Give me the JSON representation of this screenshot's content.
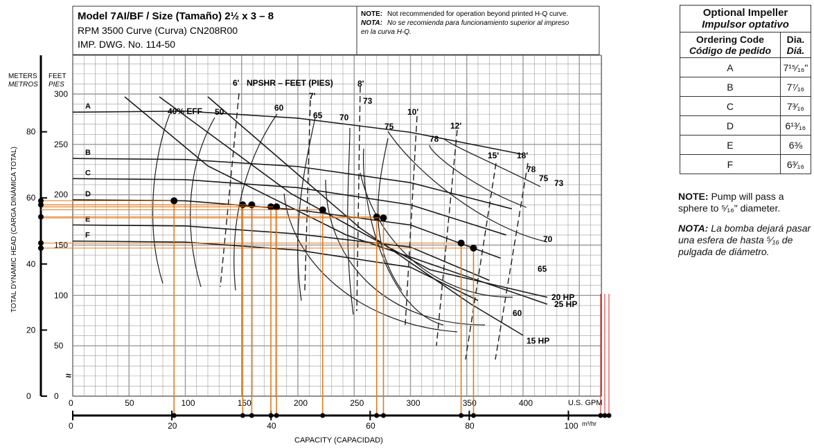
{
  "header": {
    "model_line": "Model 7AI/BF / Size (Tamaño) 2½ x 3 – 8",
    "rpm_line": "RPM 3500 Curve (Curva) CN208R00",
    "dwg_line": "IMP. DWG. No. 114-50",
    "note_en_label": "NOTE:",
    "note_en": "Not recommended for operation beyond printed H-Q curve.",
    "note_es_label": "NOTA:",
    "note_es_1": "No se recomienda para funcionamiento superior al impreso",
    "note_es_2": "en la curva H-Q."
  },
  "axes": {
    "y_left_title": "TOTAL DYNAMIC HEAD (CARGA DINÁMICA TOTAL)",
    "meters_label": "METERS",
    "metros_label": "METROS",
    "feet_label": "FEET",
    "pies_label": "PIES",
    "x_label": "CAPACITY (CAPACIDAD)",
    "gpm_unit": "U.S. GPM",
    "m3hr_unit": "m³/hr"
  },
  "table": {
    "title": "Optional Impeller",
    "title_es": "Impulsor optativo",
    "col1": "Ordering Code",
    "col1_es": "Código de pedido",
    "col2": "Dia.",
    "col2_es": "Diá.",
    "rows": [
      {
        "code": "A",
        "dia": "7¹⁵⁄₁₆\""
      },
      {
        "code": "B",
        "dia": "7⁷⁄₁₆"
      },
      {
        "code": "C",
        "dia": "7³⁄₁₆"
      },
      {
        "code": "D",
        "dia": "6¹³⁄₁₆"
      },
      {
        "code": "E",
        "dia": "6⅜"
      },
      {
        "code": "F",
        "dia": "6³⁄₁₆"
      }
    ]
  },
  "notes": {
    "en_label": "NOTE:",
    "en_text": "Pump will pass a sphere to ⁵⁄₁₆\" diameter.",
    "es_label": "NOTA:",
    "es_text": "La bomba dejará pasar una esfera de hasta ⁵⁄₁₆ de pulgada de diámetro."
  },
  "colors": {
    "grid": "#9a9a9a",
    "curve": "#1a1a1a",
    "marker_line": "#e07a1f",
    "red_line": "#d42020",
    "dot": "#000000"
  },
  "chart_data": {
    "type": "line",
    "x_unit": "U.S. GPM",
    "y_unit": "FEET",
    "xlim": [
      0,
      400
    ],
    "ylim": [
      0,
      325
    ],
    "x_ticks_gpm": [
      0,
      50,
      100,
      150,
      200,
      250,
      300,
      350,
      400
    ],
    "y_ticks_feet": [
      0,
      50,
      100,
      150,
      200,
      250,
      300
    ],
    "y_ticks_meters": [
      0,
      20,
      40,
      60,
      80
    ],
    "x_ticks_m3hr": [
      0,
      20,
      40,
      60,
      80,
      100
    ],
    "series": [
      {
        "name": "A",
        "x": [
          0,
          100,
          200,
          300,
          400
        ],
        "y": [
          282,
          283,
          276,
          262,
          240
        ]
      },
      {
        "name": "B",
        "x": [
          0,
          100,
          200,
          300,
          390
        ],
        "y": [
          236,
          235,
          228,
          212,
          186
        ]
      },
      {
        "name": "C",
        "x": [
          0,
          100,
          200,
          300,
          385
        ],
        "y": [
          216,
          215,
          207,
          190,
          160
        ]
      },
      {
        "name": "D",
        "x": [
          0,
          100,
          200,
          300,
          380
        ],
        "y": [
          195,
          194,
          185,
          170,
          137
        ]
      },
      {
        "name": "E",
        "x": [
          0,
          100,
          200,
          300,
          370
        ],
        "y": [
          170,
          169,
          161,
          148,
          115
        ]
      },
      {
        "name": "F",
        "x": [
          0,
          100,
          200,
          300,
          360
        ],
        "y": [
          154,
          153,
          145,
          128,
          95
        ]
      }
    ],
    "efficiency_labels": [
      "40% EFF",
      "50",
      "60",
      "65",
      "70",
      "73",
      "75",
      "78",
      "78",
      "75",
      "73",
      "70",
      "65",
      "60"
    ],
    "npsh_labels": [
      "6'",
      "NPSHR – FEET (PIES)",
      "7'",
      "8'",
      "10'",
      "12'",
      "15'",
      "18'"
    ],
    "hp_labels": [
      "25 HP",
      "20 HP",
      "15 HP"
    ],
    "marked_points": [
      {
        "x": 90,
        "y": 194
      },
      {
        "x": 151,
        "y": 190
      },
      {
        "x": 159,
        "y": 190
      },
      {
        "x": 176,
        "y": 188
      },
      {
        "x": 181,
        "y": 188
      },
      {
        "x": 222,
        "y": 185
      },
      {
        "x": 270,
        "y": 178
      },
      {
        "x": 276,
        "y": 177
      },
      {
        "x": 345,
        "y": 152
      },
      {
        "x": 356,
        "y": 147
      }
    ]
  }
}
